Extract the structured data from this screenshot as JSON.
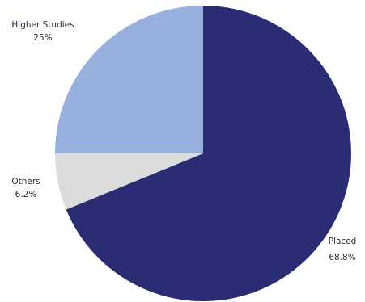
{
  "chart_data": {
    "type": "pie",
    "title": "",
    "start_angle_deg": 0,
    "direction": "clockwise",
    "slices": [
      {
        "label": "Placed",
        "value": 68.8,
        "value_label": "68.8%",
        "color": "#2b2d74"
      },
      {
        "label": "Others",
        "value": 6.2,
        "value_label": "6.2%",
        "color": "#dcdcdc"
      },
      {
        "label": "Higher Studies",
        "value": 25,
        "value_label": "25%",
        "color": "#97b0dd"
      }
    ],
    "legend": "none"
  }
}
